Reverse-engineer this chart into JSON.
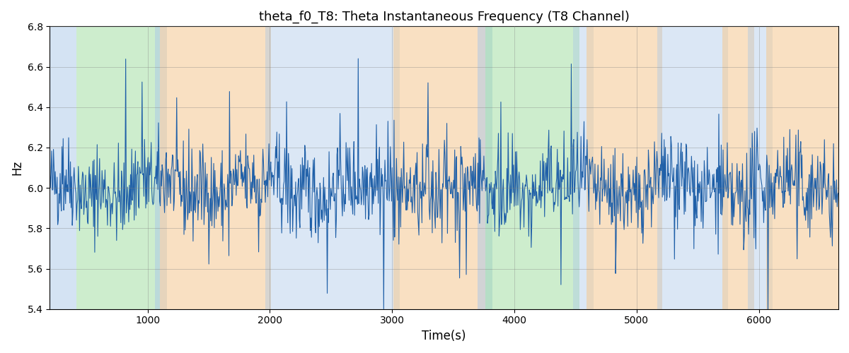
{
  "title": "theta_f0_T8: Theta Instantaneous Frequency (T8 Channel)",
  "xlabel": "Time(s)",
  "ylabel": "Hz",
  "ylim": [
    5.4,
    6.8
  ],
  "xlim": [
    200,
    6650
  ],
  "figsize": [
    12.0,
    5.0
  ],
  "dpi": 100,
  "line_color": "#2060a8",
  "line_width": 0.8,
  "bg_regions": [
    {
      "xmin": 200,
      "xmax": 420,
      "color": "#aac8e8",
      "alpha": 0.5
    },
    {
      "xmin": 420,
      "xmax": 1100,
      "color": "#90d890",
      "alpha": 0.45
    },
    {
      "xmin": 1060,
      "xmax": 1160,
      "color": "#aac8e8",
      "alpha": 0.5
    },
    {
      "xmin": 1100,
      "xmax": 2010,
      "color": "#f5c890",
      "alpha": 0.55
    },
    {
      "xmin": 1960,
      "xmax": 3060,
      "color": "#aac8e8",
      "alpha": 0.42
    },
    {
      "xmin": 3010,
      "xmax": 3760,
      "color": "#f5c890",
      "alpha": 0.55
    },
    {
      "xmin": 3700,
      "xmax": 3820,
      "color": "#aac8e8",
      "alpha": 0.5
    },
    {
      "xmin": 3760,
      "xmax": 4530,
      "color": "#90d890",
      "alpha": 0.45
    },
    {
      "xmin": 4480,
      "xmax": 4650,
      "color": "#aac8e8",
      "alpha": 0.42
    },
    {
      "xmin": 4590,
      "xmax": 5210,
      "color": "#f5c890",
      "alpha": 0.55
    },
    {
      "xmin": 5170,
      "xmax": 5750,
      "color": "#aac8e8",
      "alpha": 0.42
    },
    {
      "xmin": 5700,
      "xmax": 5960,
      "color": "#f5c890",
      "alpha": 0.55
    },
    {
      "xmin": 5910,
      "xmax": 6110,
      "color": "#aac8e8",
      "alpha": 0.42
    },
    {
      "xmin": 6060,
      "xmax": 6650,
      "color": "#f5c890",
      "alpha": 0.55
    }
  ],
  "seed": 42,
  "n_points": 1300,
  "t_start": 200,
  "t_end": 6650,
  "base_freq": 6.0,
  "noise_std": 0.11,
  "spike_prob": 0.055,
  "spike_std": 0.28
}
